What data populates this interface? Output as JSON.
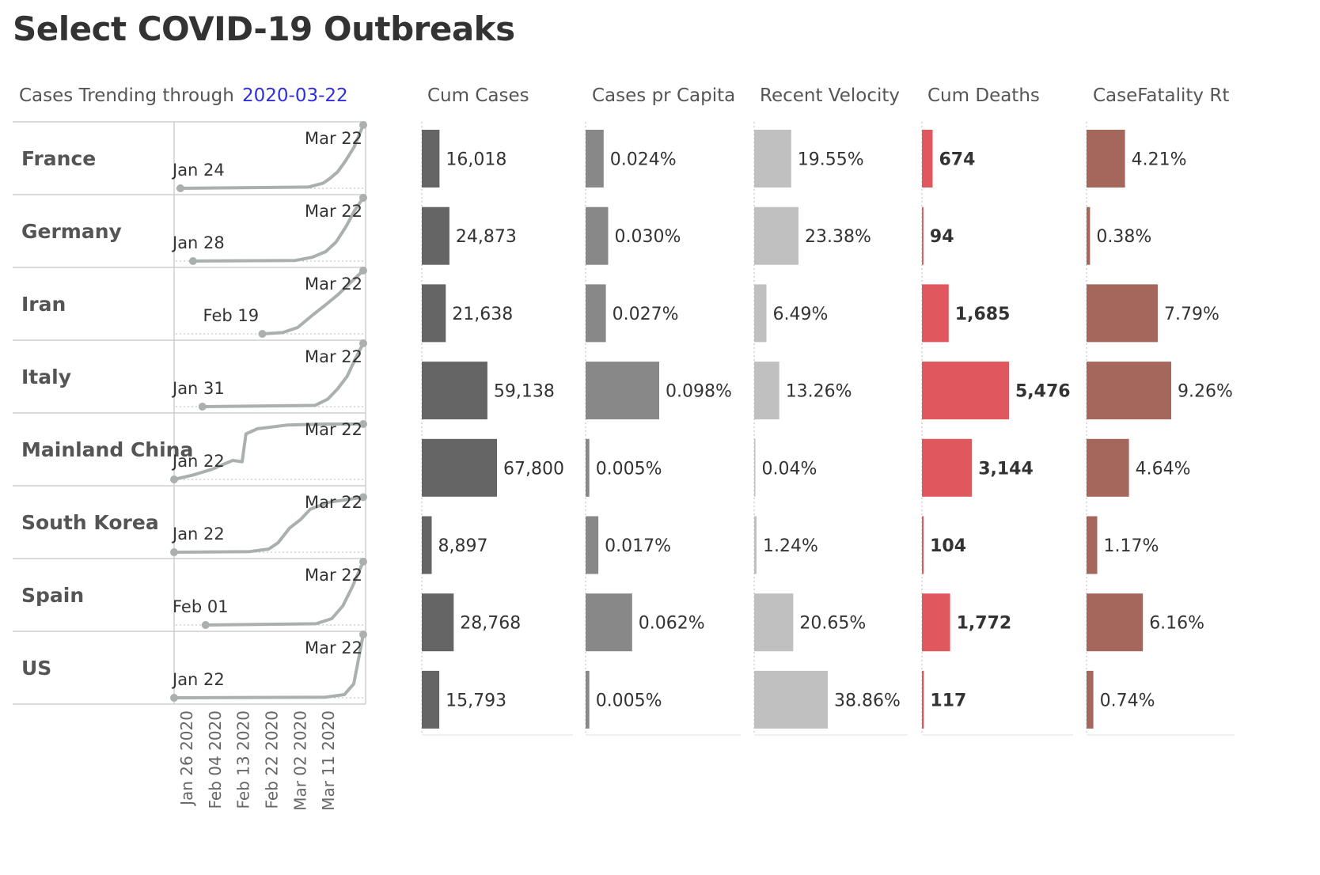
{
  "title": "Select COVID-19 Outbreaks",
  "trend_header": {
    "label": "Cases Trending through",
    "date": "2020-03-22",
    "date_color": "#2f2fde"
  },
  "columns": {
    "cum_cases": "Cum Cases",
    "per_capita": "Cases pr Capita",
    "velocity": "Recent Velocity",
    "cum_deaths": "Cum Deaths",
    "fatality": "CaseFatality Rt"
  },
  "colors": {
    "cum_cases": "#656565",
    "per_capita": "#888888",
    "velocity": "#c0c0c0",
    "cum_deaths": "#e0585e",
    "fatality": "#a5665c",
    "trend_line": "#a9b0ad"
  },
  "chart_data": {
    "type": "table",
    "countries": [
      "France",
      "Germany",
      "Iran",
      "Italy",
      "Mainland China",
      "South Korea",
      "Spain",
      "US"
    ],
    "trend_start_labels": [
      "Jan 24",
      "Jan 28",
      "Feb 19",
      "Jan 31",
      "Jan 22",
      "Jan 22",
      "Feb 01",
      "Jan 22"
    ],
    "trend_end_labels": [
      "Mar 22",
      "Mar 22",
      "Mar 22",
      "Mar 22",
      "Mar 22",
      "Mar 22",
      "Mar 22",
      "Mar 22"
    ],
    "trend_start_dates": [
      "2020-01-24",
      "2020-01-28",
      "2020-02-19",
      "2020-01-31",
      "2020-01-22",
      "2020-01-22",
      "2020-02-01",
      "2020-01-22"
    ],
    "trend_end_date": "2020-03-22",
    "x_axis_ticks": [
      "Jan 26 2020",
      "Feb 04 2020",
      "Feb 13 2020",
      "Feb 22 2020",
      "Mar 02 2020",
      "Mar 11 2020"
    ],
    "trend_shapes": [
      [
        [
          0,
          0
        ],
        [
          0.7,
          0.02
        ],
        [
          0.78,
          0.08
        ],
        [
          0.82,
          0.16
        ],
        [
          0.86,
          0.26
        ],
        [
          0.9,
          0.42
        ],
        [
          0.95,
          0.65
        ],
        [
          1,
          1
        ]
      ],
      [
        [
          0,
          0
        ],
        [
          0.6,
          0.01
        ],
        [
          0.7,
          0.06
        ],
        [
          0.78,
          0.15
        ],
        [
          0.84,
          0.3
        ],
        [
          0.9,
          0.55
        ],
        [
          0.95,
          0.8
        ],
        [
          1,
          1
        ]
      ],
      [
        [
          0,
          0
        ],
        [
          0.2,
          0.02
        ],
        [
          0.35,
          0.1
        ],
        [
          0.5,
          0.3
        ],
        [
          0.62,
          0.45
        ],
        [
          0.75,
          0.62
        ],
        [
          0.88,
          0.82
        ],
        [
          1,
          1
        ]
      ],
      [
        [
          0,
          0
        ],
        [
          0.7,
          0.02
        ],
        [
          0.78,
          0.12
        ],
        [
          0.84,
          0.28
        ],
        [
          0.9,
          0.48
        ],
        [
          0.95,
          0.75
        ],
        [
          1,
          1
        ]
      ],
      [
        [
          0,
          0
        ],
        [
          0.1,
          0.07
        ],
        [
          0.2,
          0.16
        ],
        [
          0.27,
          0.25
        ],
        [
          0.31,
          0.3
        ],
        [
          0.36,
          0.28
        ],
        [
          0.38,
          0.72
        ],
        [
          0.44,
          0.8
        ],
        [
          0.6,
          0.86
        ],
        [
          0.8,
          0.875
        ],
        [
          1,
          0.875
        ]
      ],
      [
        [
          0,
          0
        ],
        [
          0.4,
          0.01
        ],
        [
          0.5,
          0.05
        ],
        [
          0.55,
          0.15
        ],
        [
          0.61,
          0.38
        ],
        [
          0.67,
          0.52
        ],
        [
          0.72,
          0.68
        ],
        [
          0.82,
          0.79
        ],
        [
          1,
          0.87
        ]
      ],
      [
        [
          0,
          0
        ],
        [
          0.7,
          0.02
        ],
        [
          0.8,
          0.1
        ],
        [
          0.87,
          0.3
        ],
        [
          0.93,
          0.6
        ],
        [
          1,
          1
        ]
      ],
      [
        [
          0,
          0
        ],
        [
          0.8,
          0.01
        ],
        [
          0.9,
          0.05
        ],
        [
          0.95,
          0.22
        ],
        [
          1,
          1
        ]
      ]
    ],
    "cum_cases": [
      16018,
      24873,
      21638,
      59138,
      67800,
      8897,
      28768,
      15793
    ],
    "cum_cases_labels": [
      "16,018",
      "24,873",
      "21,638",
      "59,138",
      "67,800",
      "8,897",
      "28,768",
      "15,793"
    ],
    "cases_per_capita_pct": [
      0.024,
      0.03,
      0.027,
      0.098,
      0.005,
      0.017,
      0.062,
      0.005
    ],
    "cases_per_capita_labels": [
      "0.024%",
      "0.030%",
      "0.027%",
      "0.098%",
      "0.005%",
      "0.017%",
      "0.062%",
      "0.005%"
    ],
    "recent_velocity_pct": [
      19.55,
      23.38,
      6.49,
      13.26,
      0.04,
      1.24,
      20.65,
      38.86
    ],
    "recent_velocity_labels": [
      "19.55%",
      "23.38%",
      "6.49%",
      "13.26%",
      "0.04%",
      "1.24%",
      "20.65%",
      "38.86%"
    ],
    "cum_deaths": [
      674,
      94,
      1685,
      5476,
      3144,
      104,
      1772,
      117
    ],
    "cum_deaths_labels": [
      "674",
      "94",
      "1,685",
      "5,476",
      "3,144",
      "104",
      "1,772",
      "117"
    ],
    "case_fatality_pct": [
      4.21,
      0.38,
      7.79,
      9.26,
      4.64,
      1.17,
      6.16,
      0.74
    ],
    "case_fatality_labels": [
      "4.21%",
      "0.38%",
      "7.79%",
      "9.26%",
      "4.64%",
      "1.17%",
      "6.16%",
      "0.74%"
    ]
  }
}
